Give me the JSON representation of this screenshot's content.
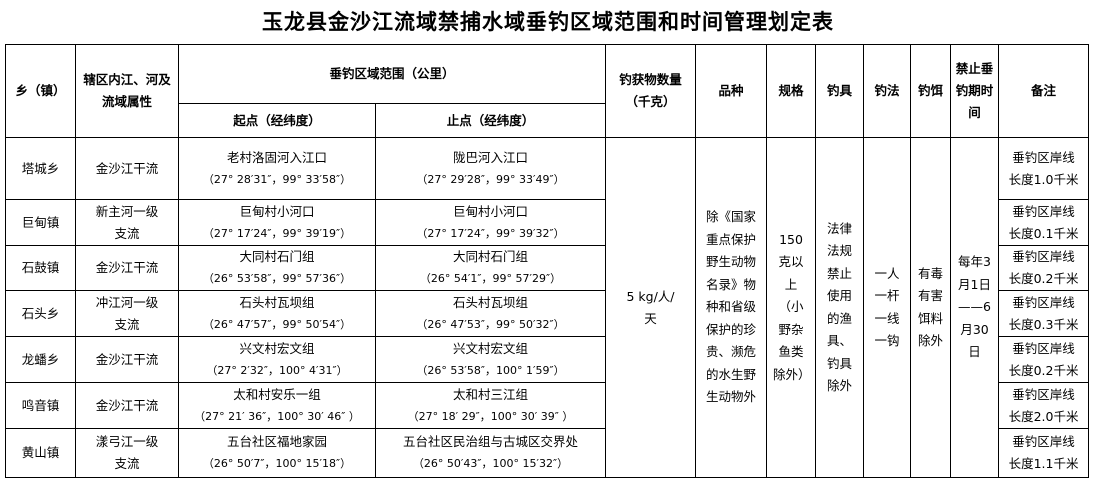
{
  "title": "玉龙县金沙江流域禁捕水域垂钓区域范围和时间管理划定表",
  "headers": {
    "township": "乡（镇）",
    "river": "辖区内江、河及流域属性",
    "range": "垂钓区域范围（公里）",
    "start": "起点（经纬度）",
    "end": "止点（经纬度）",
    "catch": "钓获物数量（千克）",
    "species": "品种",
    "size": "规格",
    "gear": "钓具",
    "method": "钓法",
    "bait": "钓饵",
    "period": "禁止垂钓期时间",
    "note": "备注"
  },
  "rows": [
    {
      "township": "塔城乡",
      "river": "金沙江干流",
      "start_name": "老村洛固河入江口",
      "start_coord": "（27° 28′31″，99° 33′58″）",
      "end_name": "陇巴河入江口",
      "end_coord": "（27° 29′28″，99° 33′49″）",
      "note": "垂钓区岸线长度1.0千米"
    },
    {
      "township": "巨甸镇",
      "river": "新主河一级支流",
      "start_name": "巨甸村小河口",
      "start_coord": "（27° 17′24″，99° 39′19″）",
      "end_name": "巨甸村小河口",
      "end_coord": "（27° 17′24″，99° 39′32″）",
      "note": "垂钓区岸线长度0.1千米"
    },
    {
      "township": "石鼓镇",
      "river": "金沙江干流",
      "start_name": "大同村石门组",
      "start_coord": "（26° 53′58″，99° 57′36″）",
      "end_name": "大同村石门组",
      "end_coord": "（26° 54′1″，99° 57′29″）",
      "note": "垂钓区岸线长度0.2千米"
    },
    {
      "township": "石头乡",
      "river": "冲江河一级支流",
      "start_name": "石头村瓦坝组",
      "start_coord": "（26° 47′57″，99° 50′54″）",
      "end_name": "石头村瓦坝组",
      "end_coord": "（26° 47′53″，99° 50′32″）",
      "note": "垂钓区岸线长度0.3千米"
    },
    {
      "township": "龙蟠乡",
      "river": "金沙江干流",
      "start_name": "兴文村宏文组",
      "start_coord": "（27° 2′32″，100° 4′31″）",
      "end_name": "兴文村宏文组",
      "end_coord": "（26° 53′58″，100° 1′59″）",
      "note": "垂钓区岸线长度0.2千米"
    },
    {
      "township": "鸣音镇",
      "river": "金沙江干流",
      "start_name": "太和村安乐一组",
      "start_coord": "（27° 21′ 36″，100° 30′ 46″ ）",
      "end_name": "太和村三江组",
      "end_coord": "（27° 18′ 29″，100° 30′ 39″ ）",
      "note": "垂钓区岸线长度2.0千米"
    },
    {
      "township": "黄山镇",
      "river": "漾弓江一级支流",
      "start_name": "五台社区福地家园",
      "start_coord": "（26° 50′7″，100° 15′18″）",
      "end_name": "五台社区民治组与古城区交界处",
      "end_coord": "（26° 50′43″，100° 15′32″）",
      "note": "垂钓区岸线长度1.1千米"
    }
  ],
  "shared": {
    "catch": "5 kg/人/天",
    "species": "除《国家重点保护野生动物名录》物种和省级保护的珍贵、濒危的水生野生动物外",
    "size": "150克以上（小野杂鱼类除外）",
    "gear": "法律法规禁止使用的渔具、钓具除外",
    "method": "一人一杆一线一钩",
    "bait": "有毒有害饵料除外",
    "period": "每年3月1日——6月30日"
  }
}
